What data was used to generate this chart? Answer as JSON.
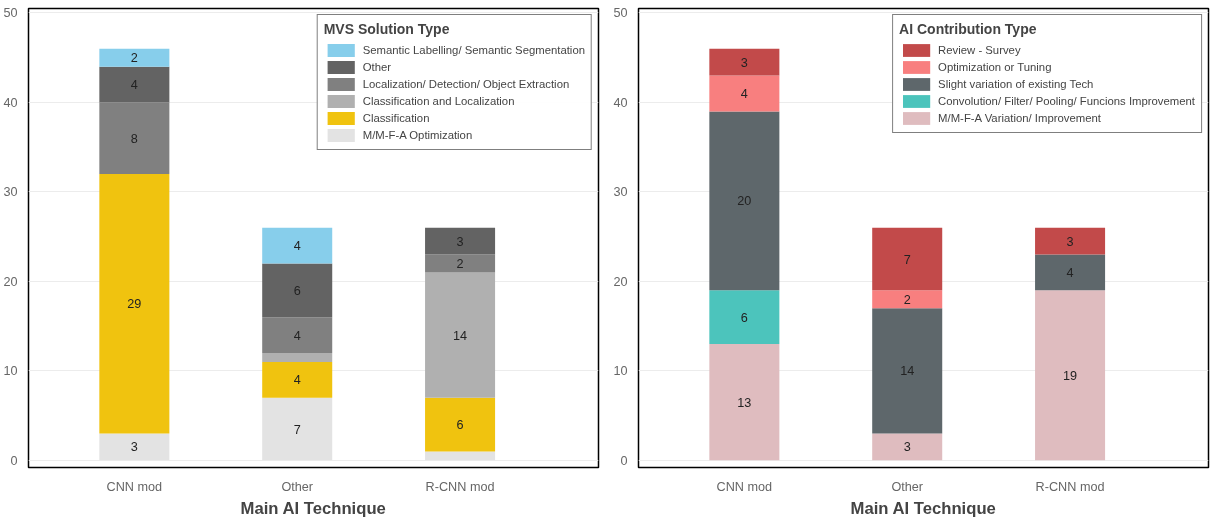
{
  "chart_data": [
    {
      "type": "bar",
      "stacked": true,
      "xlabel": "Main AI Technique",
      "legend_title": "MVS Solution Type",
      "legend": "top right",
      "grid": "y",
      "categories": [
        "CNN mod",
        "Other",
        "R-CNN mod"
      ],
      "ylim": [
        -0.8,
        50.5
      ],
      "yticks": [
        0,
        10,
        20,
        30,
        40,
        50
      ],
      "series": [
        {
          "name": "M/M-F-A Optimization",
          "color": "#e3e3e3",
          "values": [
            3,
            7,
            1
          ],
          "value_labels": [
            "3",
            "7",
            null
          ]
        },
        {
          "name": "Classification",
          "color": "#f0c30f",
          "values": [
            29,
            4,
            6
          ],
          "value_labels": [
            "29",
            "4",
            "6"
          ]
        },
        {
          "name": "Classification and Localization",
          "color": "#b0b0b0",
          "values": [
            null,
            1,
            14
          ],
          "value_labels": [
            null,
            null,
            "14"
          ]
        },
        {
          "name": "Localization/ Detection/ Object Extraction",
          "color": "#808080",
          "values": [
            8,
            4,
            2
          ],
          "value_labels": [
            "8",
            "4",
            "2"
          ]
        },
        {
          "name": "Other",
          "color": "#636363",
          "values": [
            4,
            6,
            3
          ],
          "value_labels": [
            "4",
            "6",
            "3"
          ]
        },
        {
          "name": "Semantic Labelling/ Semantic Segmentation",
          "color": "#87ceeb",
          "values": [
            2,
            4,
            null
          ],
          "value_labels": [
            "2",
            "4",
            null
          ]
        }
      ]
    },
    {
      "type": "bar",
      "stacked": true,
      "xlabel": "Main AI Technique",
      "legend_title": "AI Contribution Type",
      "legend": "top right",
      "grid": "y",
      "categories": [
        "CNN mod",
        "Other",
        "R-CNN mod"
      ],
      "ylim": [
        -0.8,
        50.5
      ],
      "yticks": [
        0,
        10,
        20,
        30,
        40,
        50
      ],
      "series": [
        {
          "name": "M/M-F-A Variation/ Improvement",
          "color": "#dfbcbf",
          "values": [
            13,
            3,
            19
          ],
          "value_labels": [
            "13",
            "3",
            "19"
          ]
        },
        {
          "name": "Convolution/ Filter/ Pooling/ Funcions Improvement",
          "color": "#4cc4bc",
          "values": [
            6,
            null,
            null
          ],
          "value_labels": [
            "6",
            null,
            null
          ]
        },
        {
          "name": "Slight variation of existing Tech",
          "color": "#5e676b",
          "values": [
            20,
            14,
            4
          ],
          "value_labels": [
            "20",
            "14",
            "4"
          ]
        },
        {
          "name": "Optimization or Tuning",
          "color": "#f87f7f",
          "values": [
            4,
            2,
            null
          ],
          "value_labels": [
            "4",
            "2",
            null
          ]
        },
        {
          "name": "Review - Survey",
          "color": "#c24a4a",
          "values": [
            3,
            7,
            3
          ],
          "value_labels": [
            "3",
            "7",
            "3"
          ]
        }
      ]
    }
  ]
}
